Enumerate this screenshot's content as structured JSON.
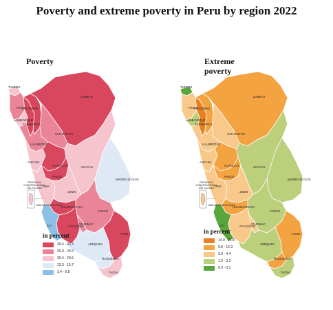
{
  "title": "Poverty and extreme poverty in Peru by region 2022",
  "maps": [
    {
      "title": "Poverty",
      "legend_title": "in percent",
      "legend": [
        {
          "label": "39.4 - 43.3",
          "color": "#d9475f"
        },
        {
          "label": "25.9 - 29.2",
          "color": "#e98597"
        },
        {
          "label": "20.4 - 23.6",
          "color": "#f5c4cd"
        },
        {
          "label": "12.3 - 15.7",
          "color": "#dfe9f6"
        },
        {
          "label": "3.4 - 6.8",
          "color": "#8ec0e6"
        }
      ]
    },
    {
      "title": "Extreme poverty",
      "legend_title": "in percent",
      "legend": [
        {
          "label": "14.9 - 21.8",
          "color": "#e8801f"
        },
        {
          "label": "9.8 - 12.3",
          "color": "#f4a341"
        },
        {
          "label": "3.3 - 4.4",
          "color": "#f8c98a"
        },
        {
          "label": "1.9 - 3.2",
          "color": "#bccf7b"
        },
        {
          "label": "0.0 - 0.1",
          "color": "#58a63c"
        }
      ]
    }
  ],
  "region_labels": {
    "tumbes": "TUMBES",
    "piura": "PIURA",
    "lambayeque": "LAMBAYEQUE",
    "cajamarca": "CAJAMARCA",
    "amazonas": "AMAZONAS",
    "loreto": "LORETO",
    "san_martin": "SAN MARTIN",
    "la_libertad": "LA LIBERTAD",
    "ancash": "ANCASH",
    "huanuco": "HUANUCO",
    "ucayali": "UCAYALI",
    "pasco": "PASCO",
    "lima": "LIMA",
    "junin": "JUNIN",
    "madre_de_dios": "MADRE DE DIOS",
    "cusco": "CUSCO",
    "huancavelica": "HUANCAVELICA",
    "ica": "ICA",
    "ayacucho": "AYACUCHO",
    "apurimac": "APURIMAC",
    "puno": "PUNO",
    "arequipa": "AREQUIPA",
    "moquegua": "MOQUEGUA",
    "tacna": "TACNA",
    "callao": "PROVINCIA CONSTITUCIONAL DEL CALLAO",
    "lima_metro": "LIMA METROPOLITANA"
  },
  "classes": {
    "poverty": {
      "tumbes": 3,
      "piura": 2,
      "lambayeque": 3,
      "cajamarca": 1,
      "amazonas": 1,
      "loreto": 1,
      "san_martin": 2,
      "la_libertad": 2,
      "ancash": 3,
      "huanuco": 1,
      "ucayali": 3,
      "pasco": 1,
      "lima": 3,
      "junin": 3,
      "madre_de_dios": 4,
      "cusco": 2,
      "huancavelica": 1,
      "ica": 5,
      "ayacucho": 1,
      "apurimac": 2,
      "puno": 1,
      "arequipa": 4,
      "moquegua": 4,
      "tacna": 3
    },
    "extreme": {
      "tumbes": 5,
      "piura": 3,
      "lambayeque": 4,
      "cajamarca": 1,
      "amazonas": 2,
      "loreto": 2,
      "san_martin": 3,
      "la_libertad": 3,
      "ancash": 3,
      "huanuco": 2,
      "ucayali": 4,
      "pasco": 2,
      "lima": 3,
      "junin": 3,
      "madre_de_dios": 4,
      "cusco": 4,
      "huancavelica": 2,
      "ica": 5,
      "ayacucho": 3,
      "apurimac": 3,
      "puno": 2,
      "arequipa": 4,
      "moquegua": 2,
      "tacna": 4
    }
  }
}
